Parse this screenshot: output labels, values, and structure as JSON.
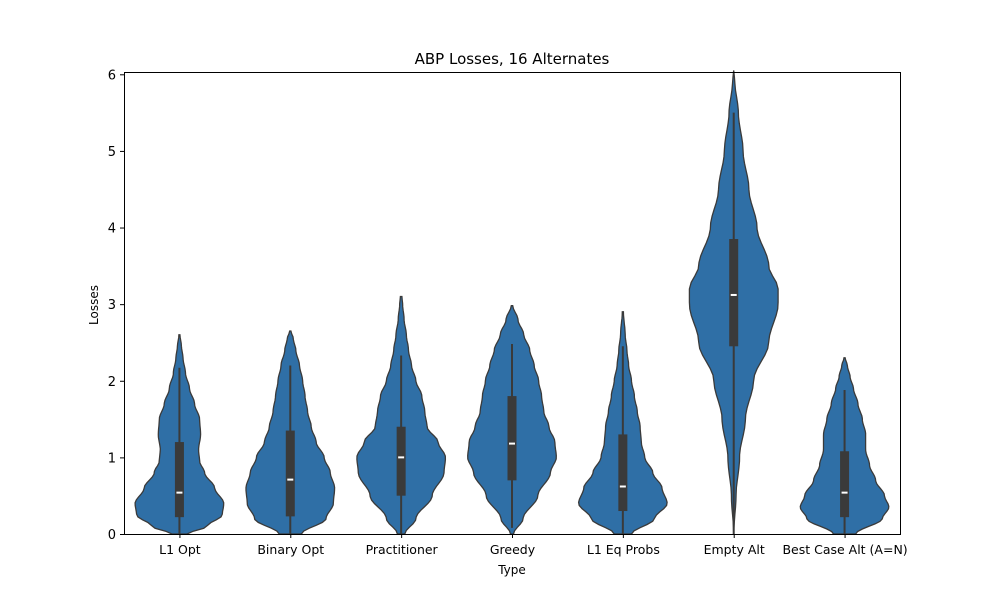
{
  "chart_data": {
    "type": "violin",
    "title": "ABP Losses, 16 Alternates",
    "xlabel": "Type",
    "ylabel": "Losses",
    "ylim": [
      0,
      6.03
    ],
    "yticks": [
      0,
      1,
      2,
      3,
      4,
      5,
      6
    ],
    "grid": false,
    "color": "#2f6fa6",
    "categories": [
      "L1 Opt",
      "Binary Opt",
      "Practitioner",
      "Greedy",
      "L1 Eq Probs",
      "Empty Alt",
      "Best Case Alt (A=N)"
    ],
    "violins": [
      {
        "category": "L1 Opt",
        "max": 2.6,
        "whisker_low": 0,
        "q1": 0.22,
        "median": 0.54,
        "q3": 1.2,
        "whisker_high": 2.17,
        "profile": [
          [
            0,
            0.15
          ],
          [
            0.1,
            0.55
          ],
          [
            0.25,
            0.85
          ],
          [
            0.4,
            0.88
          ],
          [
            0.6,
            0.7
          ],
          [
            0.8,
            0.5
          ],
          [
            0.95,
            0.4
          ],
          [
            1.1,
            0.38
          ],
          [
            1.3,
            0.42
          ],
          [
            1.5,
            0.4
          ],
          [
            1.7,
            0.3
          ],
          [
            1.9,
            0.2
          ],
          [
            2.1,
            0.12
          ],
          [
            2.3,
            0.07
          ],
          [
            2.45,
            0.04
          ],
          [
            2.6,
            0.01
          ]
        ]
      },
      {
        "category": "Binary Opt",
        "max": 2.65,
        "whisker_low": 0,
        "q1": 0.23,
        "median": 0.71,
        "q3": 1.35,
        "whisker_high": 2.2,
        "profile": [
          [
            0,
            0.18
          ],
          [
            0.2,
            0.58
          ],
          [
            0.4,
            0.7
          ],
          [
            0.6,
            0.72
          ],
          [
            0.8,
            0.65
          ],
          [
            1.0,
            0.55
          ],
          [
            1.2,
            0.42
          ],
          [
            1.4,
            0.34
          ],
          [
            1.6,
            0.28
          ],
          [
            1.8,
            0.24
          ],
          [
            2.0,
            0.2
          ],
          [
            2.2,
            0.15
          ],
          [
            2.4,
            0.09
          ],
          [
            2.55,
            0.05
          ],
          [
            2.65,
            0.01
          ]
        ]
      },
      {
        "category": "Practitioner",
        "max": 3.1,
        "whisker_low": 0,
        "q1": 0.5,
        "median": 1.0,
        "q3": 1.4,
        "whisker_high": 2.33,
        "profile": [
          [
            0,
            0.05
          ],
          [
            0.2,
            0.2
          ],
          [
            0.5,
            0.42
          ],
          [
            0.8,
            0.58
          ],
          [
            1.0,
            0.6
          ],
          [
            1.2,
            0.5
          ],
          [
            1.4,
            0.35
          ],
          [
            1.6,
            0.32
          ],
          [
            1.8,
            0.28
          ],
          [
            2.0,
            0.2
          ],
          [
            2.2,
            0.14
          ],
          [
            2.4,
            0.1
          ],
          [
            2.6,
            0.07
          ],
          [
            2.8,
            0.04
          ],
          [
            3.0,
            0.02
          ],
          [
            3.1,
            0.01
          ]
        ]
      },
      {
        "category": "Greedy",
        "max": 2.98,
        "whisker_low": 0.08,
        "q1": 0.7,
        "median": 1.18,
        "q3": 1.8,
        "whisker_high": 2.48,
        "profile": [
          [
            0,
            0.02
          ],
          [
            0.2,
            0.15
          ],
          [
            0.5,
            0.35
          ],
          [
            0.8,
            0.52
          ],
          [
            1.0,
            0.6
          ],
          [
            1.2,
            0.58
          ],
          [
            1.4,
            0.5
          ],
          [
            1.6,
            0.43
          ],
          [
            1.8,
            0.4
          ],
          [
            2.0,
            0.36
          ],
          [
            2.2,
            0.3
          ],
          [
            2.4,
            0.24
          ],
          [
            2.6,
            0.16
          ],
          [
            2.8,
            0.08
          ],
          [
            2.98,
            0.01
          ]
        ]
      },
      {
        "category": "L1 Eq Probs",
        "max": 2.9,
        "whisker_low": 0,
        "q1": 0.3,
        "median": 0.62,
        "q3": 1.3,
        "whisker_high": 2.45,
        "profile": [
          [
            0,
            0.15
          ],
          [
            0.2,
            0.55
          ],
          [
            0.4,
            0.77
          ],
          [
            0.6,
            0.68
          ],
          [
            0.8,
            0.52
          ],
          [
            1.0,
            0.38
          ],
          [
            1.2,
            0.32
          ],
          [
            1.4,
            0.3
          ],
          [
            1.6,
            0.25
          ],
          [
            1.8,
            0.2
          ],
          [
            2.0,
            0.15
          ],
          [
            2.2,
            0.1
          ],
          [
            2.4,
            0.07
          ],
          [
            2.6,
            0.04
          ],
          [
            2.9,
            0.01
          ]
        ]
      },
      {
        "category": "Empty Alt",
        "max": 6.05,
        "whisker_low": 0,
        "q1": 2.45,
        "median": 3.12,
        "q3": 3.85,
        "whisker_high": 5.5,
        "profile": [
          [
            0,
            0.0
          ],
          [
            0.5,
            0.02
          ],
          [
            1.0,
            0.05
          ],
          [
            1.5,
            0.1
          ],
          [
            2.0,
            0.17
          ],
          [
            2.5,
            0.3
          ],
          [
            3.0,
            0.38
          ],
          [
            3.2,
            0.38
          ],
          [
            3.5,
            0.3
          ],
          [
            4.0,
            0.2
          ],
          [
            4.5,
            0.13
          ],
          [
            5.0,
            0.08
          ],
          [
            5.5,
            0.04
          ],
          [
            5.9,
            0.01
          ],
          [
            6.05,
            0.0
          ]
        ]
      },
      {
        "category": "Best Case Alt (A=N)",
        "max": 2.3,
        "whisker_low": 0,
        "q1": 0.22,
        "median": 0.54,
        "q3": 1.08,
        "whisker_high": 1.88,
        "profile": [
          [
            0,
            0.2
          ],
          [
            0.2,
            0.68
          ],
          [
            0.35,
            0.8
          ],
          [
            0.5,
            0.72
          ],
          [
            0.7,
            0.56
          ],
          [
            0.9,
            0.45
          ],
          [
            1.1,
            0.38
          ],
          [
            1.3,
            0.38
          ],
          [
            1.5,
            0.32
          ],
          [
            1.7,
            0.24
          ],
          [
            1.9,
            0.16
          ],
          [
            2.05,
            0.1
          ],
          [
            2.2,
            0.05
          ],
          [
            2.3,
            0.01
          ]
        ]
      }
    ]
  }
}
